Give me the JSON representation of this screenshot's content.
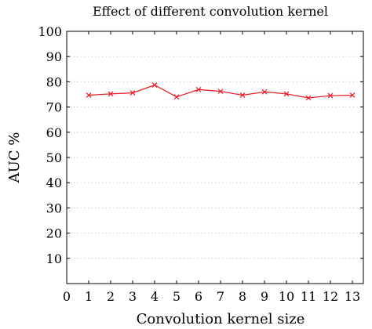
{
  "chart_data": {
    "type": "line",
    "title": "Effect of different convolution kernel",
    "xlabel": "Convolution kernel size",
    "ylabel": "AUC %",
    "xlim": [
      0,
      13.5
    ],
    "ylim": [
      0,
      100
    ],
    "x_ticks": [
      0,
      1,
      2,
      3,
      4,
      5,
      6,
      7,
      8,
      9,
      10,
      11,
      12,
      13
    ],
    "y_ticks": [
      10,
      20,
      30,
      40,
      50,
      60,
      70,
      80,
      90,
      100
    ],
    "grid": "horizontal dotted",
    "series": [
      {
        "color": "#e8202a",
        "marker": "x",
        "x": [
          1,
          2,
          3,
          4,
          5,
          6,
          7,
          8,
          9,
          10,
          11,
          12,
          13
        ],
        "values": [
          74.7,
          75.2,
          75.6,
          78.7,
          74.0,
          76.9,
          76.2,
          74.7,
          76.0,
          75.2,
          73.6,
          74.5,
          74.7
        ]
      }
    ]
  }
}
